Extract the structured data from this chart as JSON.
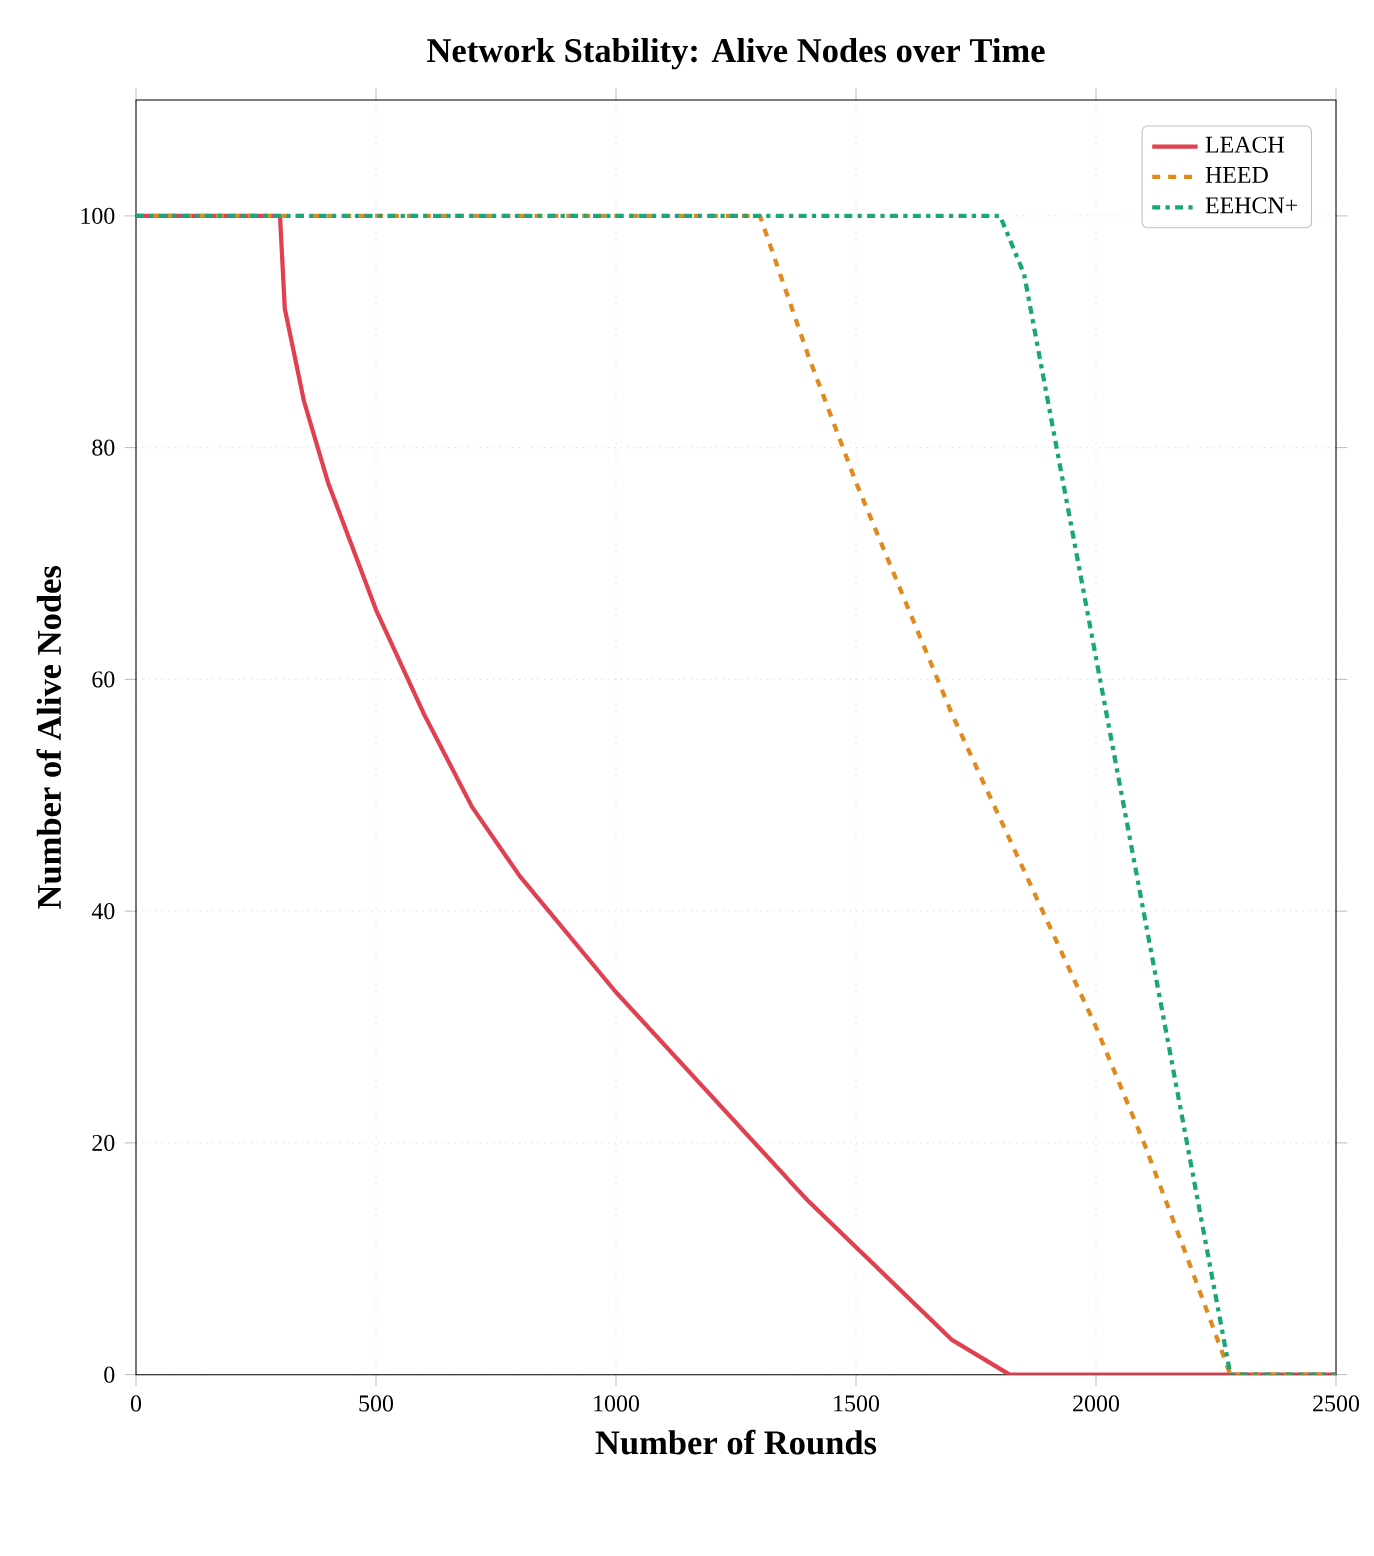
{
  "chart_data": {
    "type": "line",
    "title": "Network Stability: Alive Nodes over Time",
    "xlabel": "Number of Rounds",
    "ylabel": "Number of Alive Nodes",
    "xlim": [
      0,
      2500
    ],
    "ylim": [
      0,
      110
    ],
    "xticks": [
      0,
      500,
      1000,
      1500,
      2000,
      2500
    ],
    "yticks": [
      0,
      20,
      40,
      60,
      80,
      100
    ],
    "grid": true,
    "legend": "top right",
    "series": [
      {
        "name": "LEACH",
        "color": "#e0404f",
        "line_style": "solid",
        "x": [
          0,
          300,
          310,
          350,
          400,
          500,
          600,
          700,
          800,
          1000,
          1200,
          1400,
          1500,
          1600,
          1700,
          1820,
          2500
        ],
        "values": [
          100,
          100,
          92,
          84,
          77,
          66,
          57,
          49,
          43,
          33,
          24,
          15,
          11,
          7,
          3,
          0,
          0
        ]
      },
      {
        "name": "HEED",
        "color": "#e08a1e",
        "line_style": "dashed",
        "x": [
          0,
          1300,
          1400,
          1500,
          1600,
          1700,
          1800,
          1900,
          2000,
          2100,
          2200,
          2280,
          2500
        ],
        "values": [
          100,
          100,
          88,
          77,
          67,
          57,
          48,
          39,
          30,
          20,
          9,
          0,
          0
        ]
      },
      {
        "name": "EEHCN+",
        "color": "#1aa57a",
        "line_style": "dashdot",
        "x": [
          0,
          1800,
          1850,
          2280,
          2500
        ],
        "values": [
          100,
          100,
          95,
          0,
          0
        ]
      }
    ]
  }
}
